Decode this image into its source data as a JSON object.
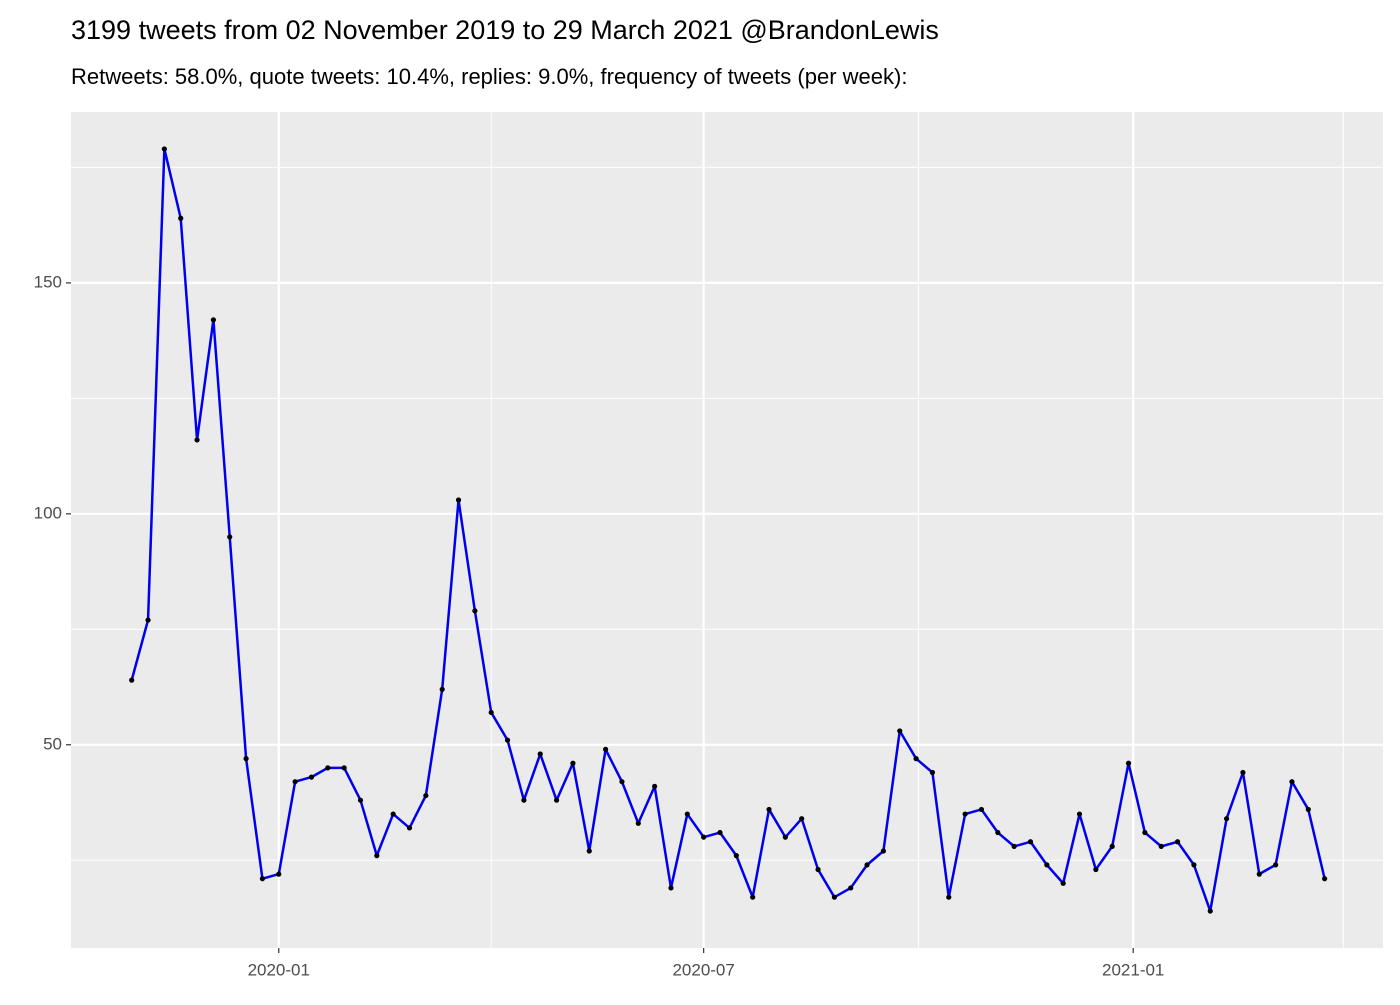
{
  "chart_data": {
    "type": "line",
    "title": "3199 tweets from 02 November 2019 to 29 March 2021 @BrandonLewis",
    "subtitle": "Retweets: 58.0%, quote tweets: 10.4%, replies: 9.0%, frequency of tweets (per week):",
    "x": [
      "2019-10-30",
      "2019-11-06",
      "2019-11-13",
      "2019-11-20",
      "2019-11-27",
      "2019-12-04",
      "2019-12-11",
      "2019-12-18",
      "2019-12-25",
      "2020-01-01",
      "2020-01-08",
      "2020-01-15",
      "2020-01-22",
      "2020-01-29",
      "2020-02-05",
      "2020-02-12",
      "2020-02-19",
      "2020-02-26",
      "2020-03-04",
      "2020-03-11",
      "2020-03-18",
      "2020-03-25",
      "2020-04-01",
      "2020-04-08",
      "2020-04-15",
      "2020-04-22",
      "2020-04-29",
      "2020-05-06",
      "2020-05-13",
      "2020-05-20",
      "2020-05-27",
      "2020-06-03",
      "2020-06-10",
      "2020-06-17",
      "2020-06-24",
      "2020-07-01",
      "2020-07-08",
      "2020-07-15",
      "2020-07-22",
      "2020-07-29",
      "2020-08-05",
      "2020-08-12",
      "2020-08-19",
      "2020-08-26",
      "2020-09-02",
      "2020-09-09",
      "2020-09-16",
      "2020-09-23",
      "2020-09-30",
      "2020-10-07",
      "2020-10-14",
      "2020-10-21",
      "2020-10-28",
      "2020-11-04",
      "2020-11-11",
      "2020-11-18",
      "2020-11-25",
      "2020-12-02",
      "2020-12-09",
      "2020-12-16",
      "2020-12-23",
      "2020-12-30",
      "2021-01-06",
      "2021-01-13",
      "2021-01-20",
      "2021-01-27",
      "2021-02-03",
      "2021-02-10",
      "2021-02-17",
      "2021-02-24",
      "2021-03-03",
      "2021-03-10",
      "2021-03-17",
      "2021-03-24"
    ],
    "series": [
      {
        "color": "#0000ee",
        "point_color": "#000000",
        "values": [
          64,
          77,
          179,
          164,
          116,
          142,
          95,
          47,
          21,
          22,
          42,
          43,
          45,
          45,
          38,
          26,
          35,
          32,
          39,
          62,
          103,
          79,
          57,
          51,
          38,
          48,
          38,
          46,
          27,
          49,
          42,
          33,
          41,
          19,
          35,
          30,
          31,
          26,
          17,
          36,
          30,
          34,
          23,
          17,
          19,
          24,
          27,
          53,
          47,
          44,
          17,
          35,
          36,
          31,
          28,
          29,
          24,
          20,
          35,
          23,
          28,
          46,
          31,
          28,
          29,
          24,
          14,
          34,
          44,
          22,
          24,
          42,
          36,
          21
        ]
      }
    ],
    "xlim": [
      "2019-10-04",
      "2021-04-18"
    ],
    "xticks": [
      {
        "value": "2020-01-01",
        "label": "2020-01"
      },
      {
        "value": "2020-07-01",
        "label": "2020-07"
      },
      {
        "value": "2021-01-01",
        "label": "2021-01"
      }
    ],
    "x_minor_ticks": [
      "2020-04-01",
      "2020-10-01",
      "2021-04-01"
    ],
    "ylim": [
      6,
      187
    ],
    "yticks": [
      50,
      100,
      150
    ],
    "y_minor_ticks": [
      25,
      75,
      125,
      175
    ],
    "grid": true
  }
}
